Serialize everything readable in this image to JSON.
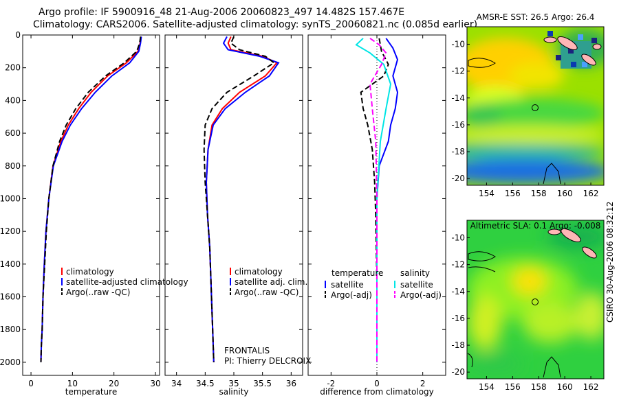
{
  "header": {
    "line1": "Argo profile: IF 5900916_48 21-Aug-2006 20060823_497 14.482S 157.467E",
    "line2": "Climatology: CARS2006. Satellite-adjusted climatology: synTS_20060821.nc (0.085d earlier)"
  },
  "side_label": "CSIRO 30-Aug-2006 08:32:12",
  "colors": {
    "climatology": "#ff0000",
    "satellite": "#0000ff",
    "argo": "#000000",
    "sal_satellite": "#00e5e5",
    "sal_argo": "#ff00ff",
    "coast": "#ffb6b6",
    "ocean_shallow": "#1a237e"
  },
  "chart_data": [
    {
      "type": "line",
      "id": "temperature",
      "xlabel": "temperature",
      "ylabel": "",
      "xlim": [
        -2,
        31
      ],
      "ylim": [
        2080,
        0
      ],
      "xticks": [
        0,
        10,
        20,
        30
      ],
      "yticks": [
        0,
        200,
        400,
        600,
        800,
        1000,
        1200,
        1400,
        1600,
        1800,
        2000
      ],
      "legend": {
        "placement": "lower-right",
        "entries": [
          "climatology",
          "satellite-adjusted climatology",
          "Argo(..raw -QC)"
        ]
      },
      "series": [
        {
          "name": "climatology",
          "style": "solid",
          "color": "#ff0000",
          "x": [
            26.5,
            26.3,
            25.8,
            23.0,
            18.5,
            14.5,
            11.5,
            9.0,
            7.2,
            5.3,
            4.3,
            3.6,
            3.2,
            2.9,
            2.7,
            2.5,
            2.4
          ],
          "y": [
            10,
            50,
            100,
            170,
            250,
            350,
            450,
            550,
            650,
            800,
            1000,
            1200,
            1400,
            1600,
            1800,
            1900,
            2000
          ]
        },
        {
          "name": "satellite-adjusted climatology",
          "style": "solid",
          "color": "#0000ff",
          "x": [
            26.6,
            26.4,
            26.0,
            23.8,
            19.5,
            15.5,
            12.2,
            9.5,
            7.5,
            5.4,
            4.3,
            3.6,
            3.2,
            2.9,
            2.7,
            2.5,
            2.4
          ],
          "y": [
            10,
            50,
            100,
            170,
            250,
            350,
            450,
            550,
            650,
            800,
            1000,
            1200,
            1400,
            1600,
            1800,
            1900,
            2000
          ]
        },
        {
          "name": "Argo(..raw -QC)",
          "style": "dashed",
          "color": "#000000",
          "x": [
            26.4,
            26.2,
            25.5,
            22.5,
            18.0,
            13.8,
            10.8,
            8.5,
            6.9,
            5.3,
            4.3,
            3.7,
            3.3,
            2.9,
            2.7,
            2.5,
            2.4
          ],
          "y": [
            10,
            50,
            100,
            170,
            250,
            350,
            450,
            550,
            650,
            800,
            1000,
            1200,
            1400,
            1600,
            1800,
            1900,
            2000
          ]
        }
      ]
    },
    {
      "type": "line",
      "id": "salinity",
      "xlabel": "salinity",
      "ylabel": "",
      "xlim": [
        33.8,
        36.2
      ],
      "ylim": [
        2080,
        0
      ],
      "xticks": [
        34,
        34.5,
        35,
        35.5,
        36
      ],
      "legend": {
        "placement": "lower-right",
        "entries": [
          "climatology",
          "satellite adj. clim.",
          "Argo(..raw -QC)"
        ]
      },
      "annotations": [
        "FRONTALIS",
        "PI: Thierry DELCROIX"
      ],
      "series": [
        {
          "name": "climatology",
          "style": "solid",
          "color": "#ff0000",
          "x": [
            34.95,
            34.9,
            34.95,
            35.5,
            35.75,
            35.55,
            35.1,
            34.8,
            34.62,
            34.55,
            34.52,
            34.54,
            34.58,
            34.61,
            34.63,
            34.65
          ],
          "y": [
            10,
            50,
            90,
            130,
            170,
            250,
            350,
            450,
            550,
            700,
            900,
            1100,
            1300,
            1600,
            1800,
            2000
          ]
        },
        {
          "name": "satellite adj. clim.",
          "style": "solid",
          "color": "#0000ff",
          "x": [
            34.88,
            34.82,
            34.9,
            35.45,
            35.78,
            35.62,
            35.2,
            34.85,
            34.64,
            34.55,
            34.52,
            34.54,
            34.58,
            34.61,
            34.63,
            34.65
          ],
          "y": [
            10,
            50,
            90,
            130,
            170,
            250,
            350,
            450,
            550,
            700,
            900,
            1100,
            1300,
            1600,
            1800,
            2000
          ]
        },
        {
          "name": "Argo(..raw -QC)",
          "style": "dashed",
          "color": "#000000",
          "x": [
            35.0,
            34.95,
            35.1,
            35.55,
            35.7,
            35.35,
            34.88,
            34.62,
            34.5,
            34.48,
            34.5,
            34.54,
            34.58,
            34.61,
            34.63,
            34.65
          ],
          "y": [
            10,
            50,
            90,
            130,
            170,
            250,
            350,
            450,
            550,
            700,
            900,
            1100,
            1300,
            1600,
            1800,
            2000
          ]
        }
      ]
    },
    {
      "type": "line",
      "id": "difference",
      "xlabel": "difference from climatology",
      "ylabel": "",
      "xlim": [
        -3,
        3
      ],
      "ylim": [
        2080,
        0
      ],
      "xticks": [
        -2,
        0,
        2
      ],
      "legend": {
        "placement": "lower",
        "headings": [
          "temperature",
          "salinity"
        ],
        "entries": [
          "satellite",
          "Argo(-adj)",
          "satellite",
          "Argo(-adj)"
        ]
      },
      "series": [
        {
          "name": "temperature satellite",
          "style": "solid",
          "color": "#0000ff",
          "x": [
            0.4,
            0.7,
            0.9,
            0.7,
            0.9,
            0.8,
            0.6,
            0.5,
            0.1,
            0.0,
            0.0,
            0.0,
            0.0
          ],
          "y": [
            20,
            80,
            150,
            250,
            350,
            450,
            550,
            650,
            800,
            1000,
            1400,
            1800,
            2000
          ]
        },
        {
          "name": "temperature Argo(-adj)",
          "style": "dashed",
          "color": "#000000",
          "x": [
            0.1,
            0.2,
            0.5,
            0.3,
            -0.7,
            -0.6,
            -0.4,
            -0.2,
            -0.1,
            -0.05,
            0.0,
            0.0
          ],
          "y": [
            20,
            100,
            180,
            250,
            350,
            450,
            550,
            700,
            900,
            1100,
            1500,
            2000
          ]
        },
        {
          "name": "salinity satellite",
          "style": "solid",
          "color": "#00e5e5",
          "x": [
            -0.6,
            -0.9,
            -0.3,
            0.3,
            0.6,
            0.4,
            0.15,
            0.0,
            0.0
          ],
          "y": [
            20,
            60,
            110,
            180,
            300,
            450,
            650,
            1000,
            2000
          ]
        },
        {
          "name": "salinity Argo(-adj)",
          "style": "dashed",
          "color": "#ff00ff",
          "x": [
            -0.3,
            0.1,
            0.4,
            0.2,
            -0.3,
            -0.2,
            -0.05,
            0.0,
            0.0
          ],
          "y": [
            20,
            60,
            110,
            180,
            300,
            450,
            650,
            1000,
            2000
          ]
        }
      ]
    },
    {
      "type": "heatmap",
      "id": "sst_map",
      "title": "AMSR-E SST: 26.5 Argo: 26.4",
      "xlim": [
        152.5,
        163
      ],
      "ylim": [
        -20.5,
        -8.7
      ],
      "xticks": [
        154,
        156,
        158,
        160,
        162
      ],
      "yticks": [
        -10,
        -12,
        -14,
        -16,
        -18,
        -20
      ],
      "marker": {
        "lon": 157.467,
        "lat": -14.482
      }
    },
    {
      "type": "heatmap",
      "id": "sla_map",
      "title": "Altimetric SLA: 0.1 Argo: -0.008",
      "xlim": [
        152.5,
        163
      ],
      "ylim": [
        -20.5,
        -8.7
      ],
      "xticks": [
        154,
        156,
        158,
        160,
        162
      ],
      "yticks": [
        -10,
        -12,
        -14,
        -16,
        -18,
        -20
      ],
      "marker": {
        "lon": 157.467,
        "lat": -14.482
      }
    }
  ]
}
